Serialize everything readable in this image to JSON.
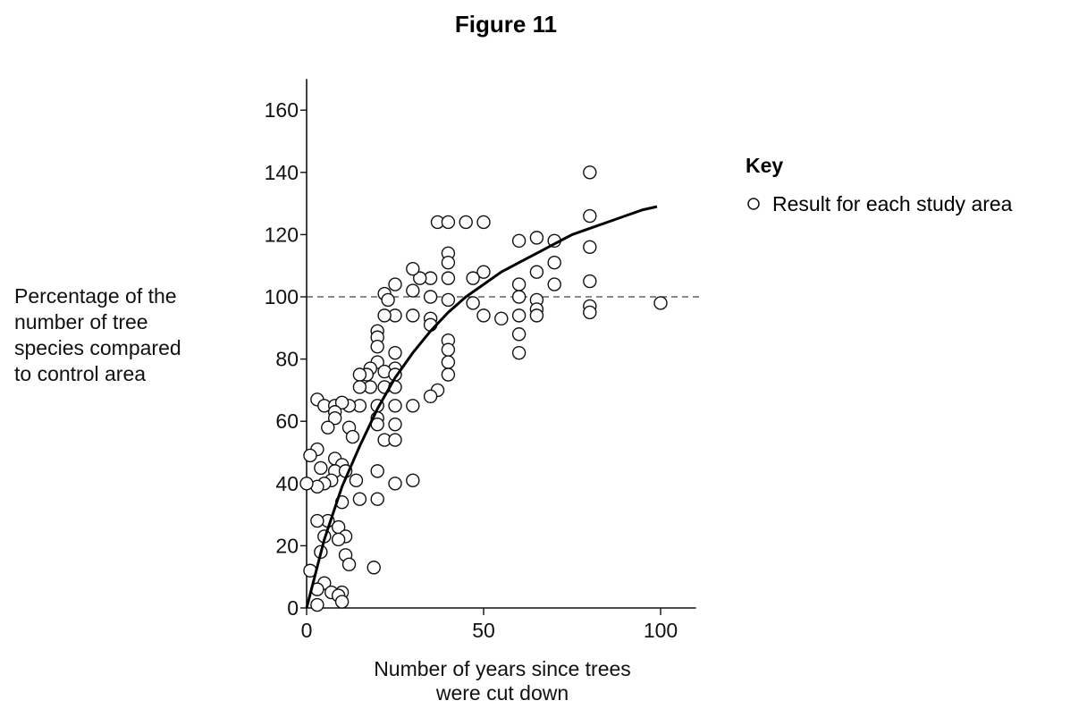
{
  "figure_title": "Figure 11",
  "key": {
    "title": "Key",
    "entry": "Result for each study area"
  },
  "chart_data": {
    "type": "scatter",
    "title": "Figure 11",
    "xlabel_lines": [
      "Number of years since trees",
      "were cut down"
    ],
    "ylabel_lines": [
      "Percentage of the",
      "number of tree",
      "species compared",
      "to control area"
    ],
    "xlim": [
      0,
      110
    ],
    "ylim": [
      0,
      170
    ],
    "x_ticks": [
      0,
      50,
      100
    ],
    "y_ticks": [
      0,
      20,
      40,
      60,
      80,
      100,
      120,
      140,
      160
    ],
    "grid": false,
    "legend": "right",
    "reference_line": {
      "y": 100,
      "style": "dashed"
    },
    "trend_curve": {
      "x": [
        0,
        5,
        10,
        15,
        20,
        25,
        30,
        35,
        40,
        45,
        50,
        55,
        60,
        65,
        70,
        75,
        80,
        85,
        90,
        95,
        99
      ],
      "y": [
        0,
        22,
        39,
        52,
        64,
        74,
        82,
        89,
        95,
        100,
        104,
        108,
        111,
        114,
        117,
        120,
        122,
        124,
        126,
        128,
        129
      ]
    },
    "points": [
      {
        "x": 80,
        "y": 140
      },
      {
        "x": 80,
        "y": 126
      },
      {
        "x": 80,
        "y": 116
      },
      {
        "x": 80,
        "y": 105
      },
      {
        "x": 80,
        "y": 97
      },
      {
        "x": 80,
        "y": 95
      },
      {
        "x": 100,
        "y": 98
      },
      {
        "x": 60,
        "y": 118
      },
      {
        "x": 65,
        "y": 119
      },
      {
        "x": 70,
        "y": 118
      },
      {
        "x": 70,
        "y": 111
      },
      {
        "x": 65,
        "y": 108
      },
      {
        "x": 60,
        "y": 104
      },
      {
        "x": 70,
        "y": 104
      },
      {
        "x": 60,
        "y": 100
      },
      {
        "x": 65,
        "y": 99
      },
      {
        "x": 65,
        "y": 96
      },
      {
        "x": 65,
        "y": 94
      },
      {
        "x": 60,
        "y": 94
      },
      {
        "x": 60,
        "y": 88
      },
      {
        "x": 60,
        "y": 82
      },
      {
        "x": 37,
        "y": 124
      },
      {
        "x": 40,
        "y": 124
      },
      {
        "x": 45,
        "y": 124
      },
      {
        "x": 50,
        "y": 124
      },
      {
        "x": 40,
        "y": 114
      },
      {
        "x": 40,
        "y": 111
      },
      {
        "x": 50,
        "y": 108
      },
      {
        "x": 47,
        "y": 106
      },
      {
        "x": 40,
        "y": 106
      },
      {
        "x": 35,
        "y": 106
      },
      {
        "x": 32,
        "y": 106
      },
      {
        "x": 30,
        "y": 109
      },
      {
        "x": 30,
        "y": 102
      },
      {
        "x": 35,
        "y": 100
      },
      {
        "x": 40,
        "y": 99
      },
      {
        "x": 47,
        "y": 98
      },
      {
        "x": 50,
        "y": 94
      },
      {
        "x": 55,
        "y": 93
      },
      {
        "x": 30,
        "y": 94
      },
      {
        "x": 35,
        "y": 93
      },
      {
        "x": 35,
        "y": 91
      },
      {
        "x": 40,
        "y": 86
      },
      {
        "x": 40,
        "y": 83
      },
      {
        "x": 40,
        "y": 79
      },
      {
        "x": 40,
        "y": 75
      },
      {
        "x": 37,
        "y": 70
      },
      {
        "x": 35,
        "y": 68
      },
      {
        "x": 30,
        "y": 65
      },
      {
        "x": 30,
        "y": 41
      },
      {
        "x": 25,
        "y": 104
      },
      {
        "x": 22,
        "y": 101
      },
      {
        "x": 23,
        "y": 99
      },
      {
        "x": 25,
        "y": 94
      },
      {
        "x": 22,
        "y": 94
      },
      {
        "x": 20,
        "y": 89
      },
      {
        "x": 20,
        "y": 87
      },
      {
        "x": 20,
        "y": 84
      },
      {
        "x": 25,
        "y": 82
      },
      {
        "x": 20,
        "y": 79
      },
      {
        "x": 18,
        "y": 77
      },
      {
        "x": 25,
        "y": 77
      },
      {
        "x": 22,
        "y": 76
      },
      {
        "x": 17,
        "y": 75
      },
      {
        "x": 15,
        "y": 75
      },
      {
        "x": 25,
        "y": 75
      },
      {
        "x": 18,
        "y": 71
      },
      {
        "x": 15,
        "y": 71
      },
      {
        "x": 22,
        "y": 71
      },
      {
        "x": 25,
        "y": 71
      },
      {
        "x": 20,
        "y": 65
      },
      {
        "x": 15,
        "y": 65
      },
      {
        "x": 12,
        "y": 65
      },
      {
        "x": 25,
        "y": 65
      },
      {
        "x": 20,
        "y": 61
      },
      {
        "x": 20,
        "y": 59
      },
      {
        "x": 25,
        "y": 59
      },
      {
        "x": 22,
        "y": 54
      },
      {
        "x": 25,
        "y": 54
      },
      {
        "x": 20,
        "y": 44
      },
      {
        "x": 25,
        "y": 40
      },
      {
        "x": 20,
        "y": 35
      },
      {
        "x": 19,
        "y": 13
      },
      {
        "x": 3,
        "y": 67
      },
      {
        "x": 5,
        "y": 65
      },
      {
        "x": 8,
        "y": 65
      },
      {
        "x": 10,
        "y": 66
      },
      {
        "x": 8,
        "y": 63
      },
      {
        "x": 8,
        "y": 61
      },
      {
        "x": 6,
        "y": 58
      },
      {
        "x": 12,
        "y": 58
      },
      {
        "x": 13,
        "y": 55
      },
      {
        "x": 3,
        "y": 51
      },
      {
        "x": 1,
        "y": 49
      },
      {
        "x": 8,
        "y": 48
      },
      {
        "x": 10,
        "y": 46
      },
      {
        "x": 4,
        "y": 45
      },
      {
        "x": 8,
        "y": 44
      },
      {
        "x": 11,
        "y": 44
      },
      {
        "x": 14,
        "y": 41
      },
      {
        "x": 7,
        "y": 41
      },
      {
        "x": 5,
        "y": 40
      },
      {
        "x": 3,
        "y": 39
      },
      {
        "x": 0,
        "y": 40
      },
      {
        "x": 15,
        "y": 35
      },
      {
        "x": 10,
        "y": 34
      },
      {
        "x": 6,
        "y": 28
      },
      {
        "x": 3,
        "y": 28
      },
      {
        "x": 9,
        "y": 26
      },
      {
        "x": 5,
        "y": 23
      },
      {
        "x": 11,
        "y": 23
      },
      {
        "x": 9,
        "y": 22
      },
      {
        "x": 4,
        "y": 18
      },
      {
        "x": 11,
        "y": 17
      },
      {
        "x": 12,
        "y": 14
      },
      {
        "x": 1,
        "y": 12
      },
      {
        "x": 5,
        "y": 8
      },
      {
        "x": 3,
        "y": 6
      },
      {
        "x": 7,
        "y": 5
      },
      {
        "x": 10,
        "y": 5
      },
      {
        "x": 9,
        "y": 4
      },
      {
        "x": 10,
        "y": 2
      },
      {
        "x": 3,
        "y": 1
      }
    ]
  }
}
